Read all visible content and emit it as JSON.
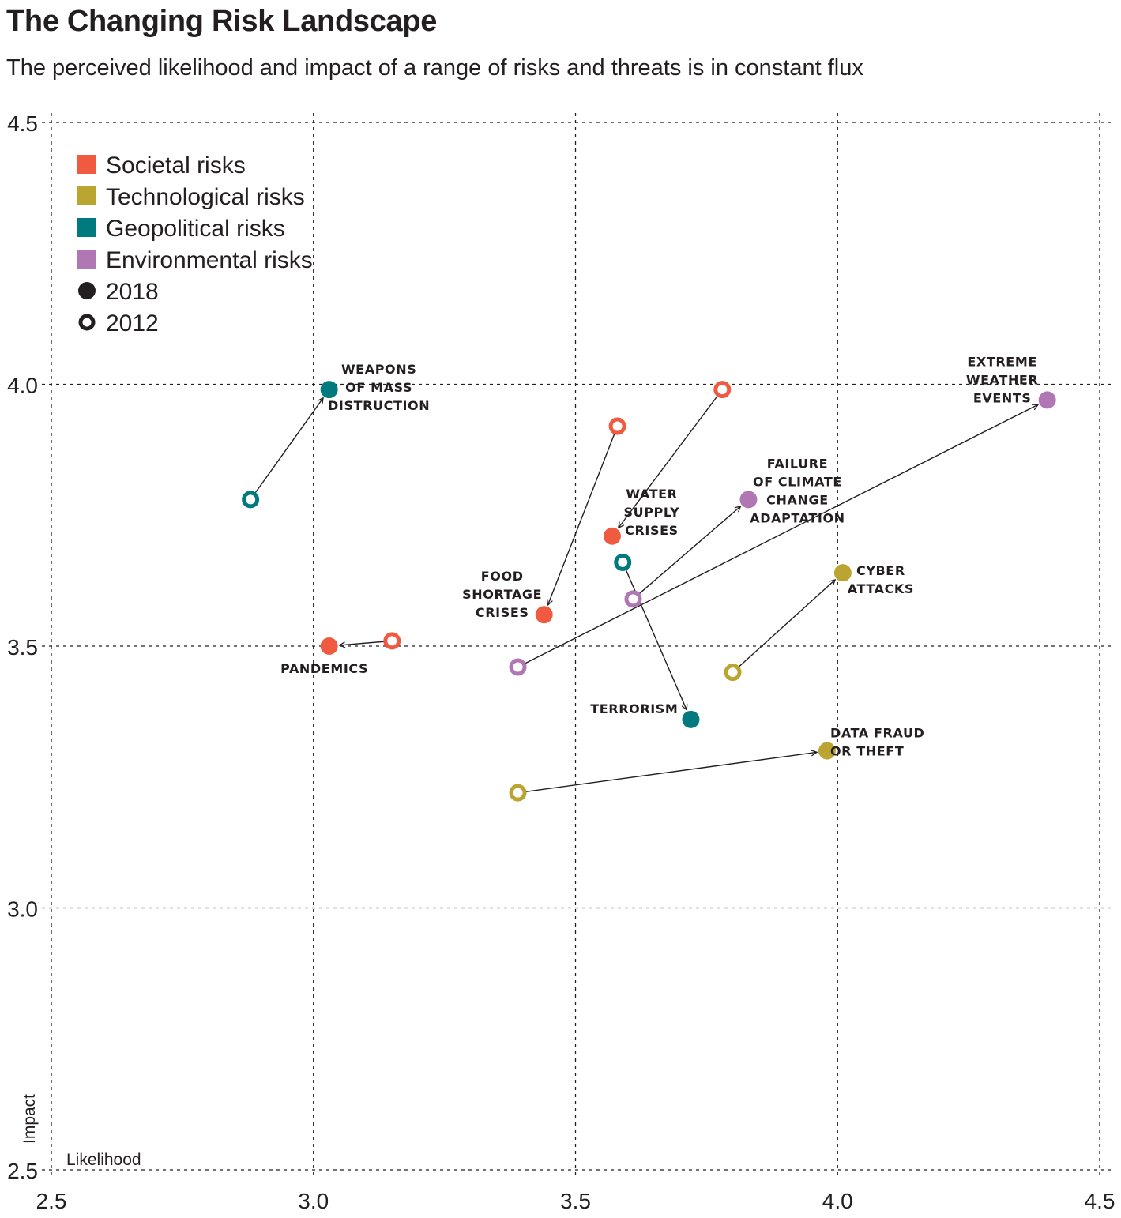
{
  "header": {
    "title": "The Changing Risk Landscape",
    "subtitle": "The perceived likelihood and impact of a range of risks and threats is in constant flux"
  },
  "chart_data": {
    "type": "scatter",
    "title": "The Changing Risk Landscape",
    "subtitle": "The perceived likelihood and impact of a range of risks and threats is in constant flux",
    "xlabel": "Likelihood",
    "ylabel": "Impact",
    "xlim": [
      2.5,
      4.5
    ],
    "ylim": [
      2.5,
      4.5
    ],
    "x_ticks": [
      "2.5",
      "3.0",
      "3.5",
      "4.0",
      "4.5"
    ],
    "y_ticks": [
      "2.5",
      "3.0",
      "3.5",
      "4.0",
      "4.5"
    ],
    "grid": true,
    "grid_style": "dotted",
    "legend_position": "top-left",
    "categories": [
      {
        "key": "societal",
        "name": "Societal risks",
        "color": "#EF5A41"
      },
      {
        "key": "technological",
        "name": "Technological risks",
        "color": "#BBA532"
      },
      {
        "key": "geopolitical",
        "name": "Geopolitical risks",
        "color": "#007A7E"
      },
      {
        "key": "environmental",
        "name": "Environmental risks",
        "color": "#B077B4"
      }
    ],
    "year_legend": [
      {
        "year": "2018",
        "marker": "filled-circle"
      },
      {
        "year": "2012",
        "marker": "open-circle"
      }
    ],
    "series": [
      {
        "name": "Weapons of Mass Distruction",
        "label_lines": [
          "Weapons",
          "of Mass",
          "Distruction"
        ],
        "category": "geopolitical",
        "y2012": {
          "x": 2.88,
          "y": 3.78
        },
        "y2018": {
          "x": 3.03,
          "y": 3.99
        },
        "label_pos": "right"
      },
      {
        "name": "Pandemics",
        "label_lines": [
          "pandemics"
        ],
        "category": "societal",
        "y2012": {
          "x": 3.15,
          "y": 3.51
        },
        "y2018": {
          "x": 3.03,
          "y": 3.5
        },
        "label_pos": "below"
      },
      {
        "name": "Food shortage crises",
        "label_lines": [
          "Food",
          "shortage",
          "crises"
        ],
        "category": "societal",
        "y2012": {
          "x": 3.58,
          "y": 3.92
        },
        "y2018": {
          "x": 3.44,
          "y": 3.56
        },
        "label_pos": "left"
      },
      {
        "name": "Water supply crises",
        "label_lines": [
          "Water",
          "supply",
          "crises"
        ],
        "category": "societal",
        "y2012": {
          "x": 3.78,
          "y": 3.99
        },
        "y2018": {
          "x": 3.57,
          "y": 3.71
        },
        "label_pos": "right"
      },
      {
        "name": "Terrorism",
        "label_lines": [
          "Terrorism"
        ],
        "category": "geopolitical",
        "y2012": {
          "x": 3.59,
          "y": 3.66
        },
        "y2018": {
          "x": 3.72,
          "y": 3.36
        },
        "label_pos": "left"
      },
      {
        "name": "Failure of climate change adaptation",
        "label_lines": [
          "Failure",
          "of climate",
          "change",
          "adaptation"
        ],
        "category": "environmental",
        "y2012": {
          "x": 3.61,
          "y": 3.59
        },
        "y2018": {
          "x": 3.83,
          "y": 3.78
        },
        "label_pos": "right"
      },
      {
        "name": "Extreme weather events",
        "label_lines": [
          "Extreme",
          "weather",
          "events"
        ],
        "category": "environmental",
        "y2012": {
          "x": 3.39,
          "y": 3.46
        },
        "y2018": {
          "x": 4.4,
          "y": 3.97
        },
        "label_pos": "left"
      },
      {
        "name": "Cyber attacks",
        "label_lines": [
          "Cyber",
          "attacks"
        ],
        "category": "technological",
        "y2012": {
          "x": 3.8,
          "y": 3.45
        },
        "y2018": {
          "x": 4.01,
          "y": 3.64
        },
        "label_pos": "right"
      },
      {
        "name": "Data fraud or theft",
        "label_lines": [
          "Data fraud",
          "or theft"
        ],
        "category": "technological",
        "y2012": {
          "x": 3.39,
          "y": 3.22
        },
        "y2018": {
          "x": 3.98,
          "y": 3.3
        },
        "label_pos": "right"
      }
    ]
  }
}
